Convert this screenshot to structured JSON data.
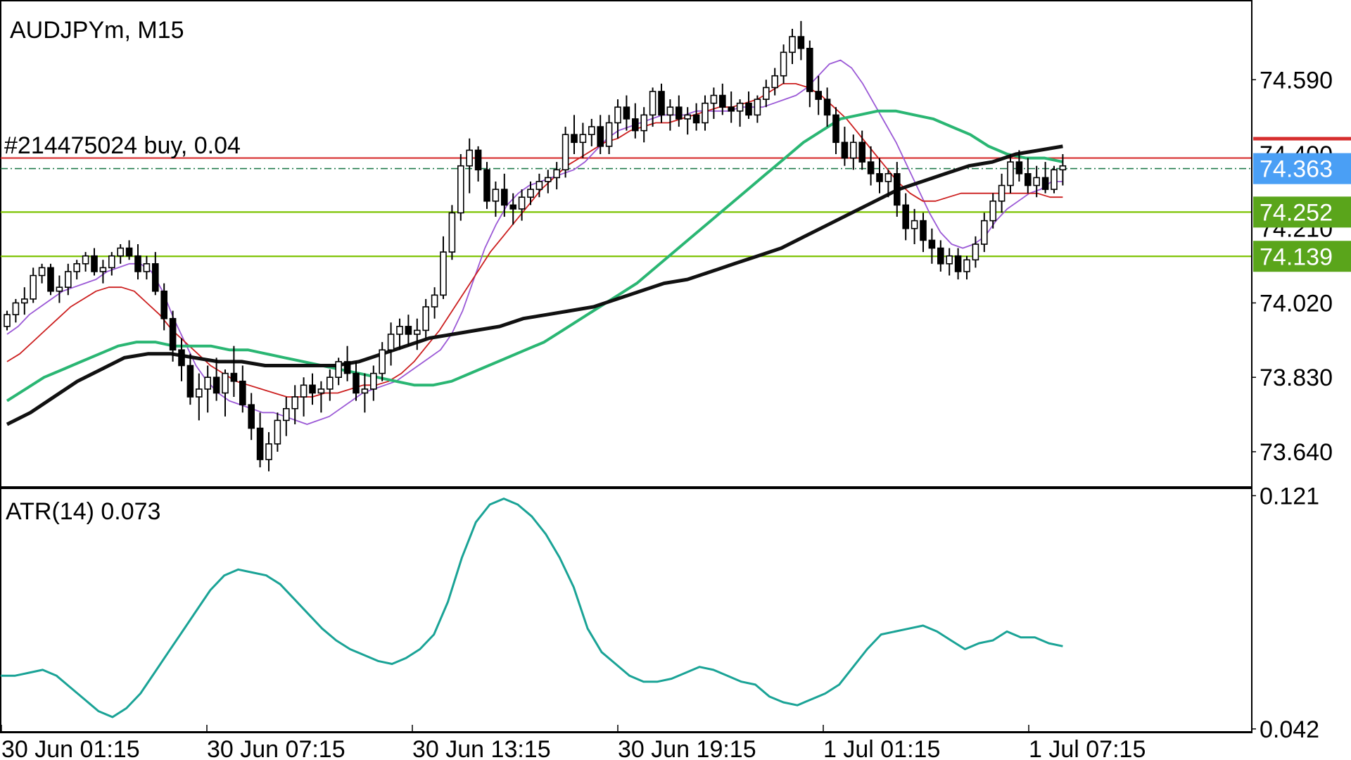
{
  "chart_data": [
    {
      "type": "candlestick",
      "title": "AUDJPYm, M15",
      "x_ticks": [
        "30 Jun 01:15",
        "30 Jun 07:15",
        "30 Jun 13:15",
        "30 Jun 19:15",
        "1 Jul 01:15",
        "1 Jul 07:15"
      ],
      "y_ticks": [
        "74.590",
        "74.020",
        "73.830",
        "73.640"
      ],
      "y_range": [
        73.55,
        74.79
      ],
      "grid": false,
      "series_mode": "candles with moving-average overlays",
      "ohlc": [
        [
          73.96,
          74.0,
          73.95,
          73.99
        ],
        [
          73.99,
          74.03,
          73.97,
          74.02
        ],
        [
          74.02,
          74.06,
          73.99,
          74.03
        ],
        [
          74.03,
          74.11,
          74.02,
          74.09
        ],
        [
          74.09,
          74.12,
          74.07,
          74.11
        ],
        [
          74.11,
          74.12,
          74.04,
          74.05
        ],
        [
          74.05,
          74.09,
          74.02,
          74.06
        ],
        [
          74.06,
          74.12,
          74.04,
          74.1
        ],
        [
          74.1,
          74.13,
          74.08,
          74.12
        ],
        [
          74.12,
          74.15,
          74.1,
          74.14
        ],
        [
          74.14,
          74.16,
          74.09,
          74.1
        ],
        [
          74.1,
          74.13,
          74.07,
          74.11
        ],
        [
          74.11,
          74.15,
          74.09,
          74.14
        ],
        [
          74.14,
          74.17,
          74.12,
          74.16
        ],
        [
          74.16,
          74.18,
          74.13,
          74.14
        ],
        [
          74.14,
          74.17,
          74.08,
          74.1
        ],
        [
          74.1,
          74.14,
          74.08,
          74.12
        ],
        [
          74.12,
          74.15,
          74.04,
          74.05
        ],
        [
          74.05,
          74.07,
          73.95,
          73.98
        ],
        [
          73.98,
          74.0,
          73.87,
          73.9
        ],
        [
          73.9,
          73.93,
          73.82,
          73.86
        ],
        [
          73.86,
          73.89,
          73.76,
          73.78
        ],
        [
          73.78,
          73.84,
          73.72,
          73.8
        ],
        [
          73.8,
          73.86,
          73.74,
          73.83
        ],
        [
          73.83,
          73.88,
          73.77,
          73.79
        ],
        [
          73.79,
          73.85,
          73.73,
          73.84
        ],
        [
          73.84,
          73.91,
          73.78,
          73.82
        ],
        [
          73.82,
          73.86,
          73.74,
          73.76
        ],
        [
          73.76,
          73.79,
          73.67,
          73.7
        ],
        [
          73.7,
          73.74,
          73.6,
          73.62
        ],
        [
          73.62,
          73.69,
          73.59,
          73.66
        ],
        [
          73.66,
          73.74,
          73.64,
          73.72
        ],
        [
          73.72,
          73.78,
          73.68,
          73.75
        ],
        [
          73.75,
          73.81,
          73.71,
          73.78
        ],
        [
          73.78,
          73.83,
          73.73,
          73.81
        ],
        [
          73.81,
          73.84,
          73.76,
          73.79
        ],
        [
          73.79,
          73.82,
          73.74,
          73.8
        ],
        [
          73.8,
          73.85,
          73.77,
          73.83
        ],
        [
          73.83,
          73.88,
          73.81,
          73.87
        ],
        [
          73.87,
          73.91,
          73.82,
          73.84
        ],
        [
          73.84,
          73.87,
          73.77,
          73.79
        ],
        [
          73.79,
          73.84,
          73.74,
          73.8
        ],
        [
          73.8,
          73.86,
          73.77,
          73.84
        ],
        [
          73.84,
          73.92,
          73.82,
          73.9
        ],
        [
          73.9,
          73.97,
          73.86,
          73.94
        ],
        [
          73.94,
          73.98,
          73.9,
          73.96
        ],
        [
          73.96,
          73.99,
          73.91,
          73.94
        ],
        [
          73.94,
          73.98,
          73.9,
          73.95
        ],
        [
          73.95,
          74.03,
          73.93,
          74.01
        ],
        [
          74.01,
          74.06,
          73.98,
          74.04
        ],
        [
          74.04,
          74.19,
          74.03,
          74.15
        ],
        [
          74.15,
          74.27,
          74.13,
          74.25
        ],
        [
          74.25,
          74.4,
          74.23,
          74.37
        ],
        [
          74.37,
          74.44,
          74.3,
          74.41
        ],
        [
          74.41,
          74.42,
          74.33,
          74.36
        ],
        [
          74.36,
          74.38,
          74.26,
          74.28
        ],
        [
          74.28,
          74.33,
          74.24,
          74.31
        ],
        [
          74.31,
          74.35,
          74.24,
          74.27
        ],
        [
          74.27,
          74.3,
          74.22,
          74.26
        ],
        [
          74.26,
          74.31,
          74.23,
          74.29
        ],
        [
          74.29,
          74.33,
          74.27,
          74.31
        ],
        [
          74.31,
          74.35,
          74.29,
          74.33
        ],
        [
          74.33,
          74.36,
          74.3,
          74.34
        ],
        [
          74.34,
          74.38,
          74.31,
          74.36
        ],
        [
          74.36,
          74.47,
          74.34,
          74.45
        ],
        [
          74.45,
          74.5,
          74.4,
          74.43
        ],
        [
          74.43,
          74.48,
          74.39,
          74.45
        ],
        [
          74.45,
          74.49,
          74.42,
          74.47
        ],
        [
          74.47,
          74.5,
          74.4,
          74.42
        ],
        [
          74.42,
          74.5,
          74.4,
          74.48
        ],
        [
          74.48,
          74.54,
          74.44,
          74.52
        ],
        [
          74.52,
          74.55,
          74.46,
          74.49
        ],
        [
          74.49,
          74.53,
          74.44,
          74.46
        ],
        [
          74.46,
          74.52,
          74.43,
          74.5
        ],
        [
          74.5,
          74.57,
          74.47,
          74.56
        ],
        [
          74.56,
          74.58,
          74.48,
          74.5
        ],
        [
          74.5,
          74.54,
          74.46,
          74.52
        ],
        [
          74.52,
          74.55,
          74.47,
          74.49
        ],
        [
          74.49,
          74.52,
          74.45,
          74.5
        ],
        [
          74.5,
          74.53,
          74.46,
          74.48
        ],
        [
          74.48,
          74.55,
          74.46,
          74.53
        ],
        [
          74.53,
          74.57,
          74.49,
          74.55
        ],
        [
          74.55,
          74.58,
          74.5,
          74.52
        ],
        [
          74.52,
          74.56,
          74.48,
          74.51
        ],
        [
          74.51,
          74.54,
          74.47,
          74.53
        ],
        [
          74.53,
          74.56,
          74.49,
          74.5
        ],
        [
          74.5,
          74.55,
          74.48,
          74.54
        ],
        [
          74.54,
          74.59,
          74.52,
          74.57
        ],
        [
          74.57,
          74.62,
          74.55,
          74.6
        ],
        [
          74.6,
          74.68,
          74.58,
          74.66
        ],
        [
          74.66,
          74.72,
          74.63,
          74.7
        ],
        [
          74.7,
          74.74,
          74.64,
          74.67
        ],
        [
          74.67,
          74.69,
          74.52,
          74.56
        ],
        [
          74.56,
          74.6,
          74.5,
          74.54
        ],
        [
          74.54,
          74.57,
          74.47,
          74.5
        ],
        [
          74.5,
          74.52,
          74.4,
          74.43
        ],
        [
          74.43,
          74.47,
          74.37,
          74.39
        ],
        [
          74.39,
          74.45,
          74.36,
          74.43
        ],
        [
          74.43,
          74.46,
          74.36,
          74.38
        ],
        [
          74.38,
          74.42,
          74.32,
          74.35
        ],
        [
          74.35,
          74.39,
          74.3,
          74.33
        ],
        [
          74.33,
          74.36,
          74.29,
          74.35
        ],
        [
          74.35,
          74.38,
          74.24,
          74.27
        ],
        [
          74.27,
          74.3,
          74.18,
          74.21
        ],
        [
          74.21,
          74.26,
          74.17,
          74.23
        ],
        [
          74.23,
          74.25,
          74.15,
          74.18
        ],
        [
          74.18,
          74.21,
          74.12,
          74.16
        ],
        [
          74.16,
          74.18,
          74.1,
          74.12
        ],
        [
          74.12,
          74.16,
          74.09,
          74.14
        ],
        [
          74.14,
          74.16,
          74.08,
          74.1
        ],
        [
          74.1,
          74.14,
          74.08,
          74.13
        ],
        [
          74.13,
          74.19,
          74.11,
          74.17
        ],
        [
          74.17,
          74.25,
          74.15,
          74.23
        ],
        [
          74.23,
          74.3,
          74.21,
          74.28
        ],
        [
          74.28,
          74.35,
          74.25,
          74.32
        ],
        [
          74.32,
          74.4,
          74.3,
          74.38
        ],
        [
          74.38,
          74.41,
          74.33,
          74.35
        ],
        [
          74.35,
          74.39,
          74.3,
          74.32
        ],
        [
          74.32,
          74.37,
          74.29,
          74.34
        ],
        [
          74.34,
          74.38,
          74.3,
          74.31
        ],
        [
          74.31,
          74.37,
          74.3,
          74.36
        ],
        [
          74.36,
          74.4,
          74.32,
          74.37
        ]
      ],
      "overlays": [
        {
          "color": "#9b59d6",
          "values": [
            73.94,
            73.96,
            73.99,
            74.01,
            74.03,
            74.05,
            74.06,
            74.07,
            74.08,
            74.1,
            74.11,
            74.12,
            74.12,
            74.1,
            74.05,
            73.98,
            73.92,
            73.86,
            73.82,
            73.79,
            73.77,
            73.76,
            73.75,
            73.74,
            73.74,
            73.73,
            73.72,
            73.71,
            73.72,
            73.73,
            73.75,
            73.77,
            73.79,
            73.8,
            73.81,
            73.82,
            73.84,
            73.86,
            73.88,
            73.9,
            73.94,
            74.0,
            74.08,
            74.16,
            74.22,
            74.27,
            74.3,
            74.32,
            74.33,
            74.34,
            74.35,
            74.36,
            74.38,
            74.41,
            74.44,
            74.46,
            74.47,
            74.48,
            74.49,
            74.5,
            74.5,
            74.5,
            74.51,
            74.51,
            74.51,
            74.51,
            74.52,
            74.52,
            74.52,
            74.53,
            74.54,
            74.55,
            74.57,
            74.6,
            74.63,
            74.64,
            74.62,
            74.58,
            74.53,
            74.48,
            74.43,
            74.37,
            74.31,
            74.25,
            74.2,
            74.17,
            74.16,
            74.17,
            74.19,
            74.23,
            74.26,
            74.28,
            74.3,
            74.31,
            74.33,
            74.33
          ]
        },
        {
          "color": "#cc1f1f",
          "values": [
            73.87,
            73.89,
            73.92,
            73.95,
            73.98,
            74.01,
            74.03,
            74.05,
            74.06,
            74.06,
            74.05,
            74.02,
            73.99,
            73.95,
            73.92,
            73.89,
            73.86,
            73.84,
            73.82,
            73.81,
            73.8,
            73.79,
            73.78,
            73.78,
            73.78,
            73.79,
            73.79,
            73.8,
            73.81,
            73.81,
            73.82,
            73.84,
            73.87,
            73.91,
            73.95,
            74.0,
            74.05,
            74.1,
            74.15,
            74.19,
            74.23,
            74.27,
            74.31,
            74.34,
            74.37,
            74.39,
            74.41,
            74.43,
            74.44,
            74.46,
            74.47,
            74.48,
            74.48,
            74.49,
            74.5,
            74.51,
            74.52,
            74.52,
            74.53,
            74.54,
            74.56,
            74.58,
            74.58,
            74.57,
            74.55,
            74.52,
            74.49,
            74.45,
            74.41,
            74.37,
            74.33,
            74.3,
            74.28,
            74.28,
            74.29,
            74.3,
            74.3,
            74.3,
            74.3,
            74.3,
            74.3,
            74.3,
            74.29,
            74.29
          ]
        },
        {
          "color": "#2ab673",
          "values": [
            73.77,
            73.8,
            73.83,
            73.85,
            73.87,
            73.89,
            73.91,
            73.92,
            73.92,
            73.91,
            73.91,
            73.91,
            73.9,
            73.9,
            73.89,
            73.88,
            73.87,
            73.86,
            73.85,
            73.84,
            73.83,
            73.82,
            73.81,
            73.81,
            73.82,
            73.84,
            73.86,
            73.88,
            73.9,
            73.92,
            73.95,
            73.98,
            74.01,
            74.04,
            74.07,
            74.11,
            74.15,
            74.19,
            74.23,
            74.27,
            74.31,
            74.35,
            74.39,
            74.43,
            74.46,
            74.49,
            74.5,
            74.51,
            74.51,
            74.5,
            74.49,
            74.47,
            74.45,
            74.42,
            74.4,
            74.39,
            74.39,
            74.38
          ]
        },
        {
          "color": "#111111",
          "values": [
            73.71,
            73.74,
            73.78,
            73.82,
            73.85,
            73.88,
            73.89,
            73.89,
            73.88,
            73.87,
            73.87,
            73.86,
            73.86,
            73.86,
            73.86,
            73.87,
            73.89,
            73.91,
            73.93,
            73.94,
            73.95,
            73.96,
            73.98,
            73.99,
            74.0,
            74.01,
            74.03,
            74.05,
            74.07,
            74.08,
            74.1,
            74.12,
            74.14,
            74.16,
            74.19,
            74.22,
            74.25,
            74.28,
            74.31,
            74.33,
            74.35,
            74.37,
            74.38,
            74.4,
            74.41,
            74.42
          ]
        }
      ],
      "horizontal_lines": [
        {
          "label": "#214475024 buy, 0.04",
          "value": 74.39,
          "color": "#d62d2d"
        },
        {
          "label": "",
          "value": 74.363,
          "color": "#1f7a4a",
          "style": "dash-dot"
        },
        {
          "label": "",
          "value": 74.252,
          "color": "#7cc300"
        },
        {
          "label": "",
          "value": 74.139,
          "color": "#7cc300"
        }
      ],
      "price_badges": [
        {
          "text": "74.363",
          "color": "#4a9ff5"
        },
        {
          "text": "74.252",
          "color": "#5aa51b"
        },
        {
          "text": "74.139",
          "color": "#5aa51b"
        }
      ],
      "partially_hidden_labels": [
        "74.400",
        "74.210"
      ]
    },
    {
      "type": "line",
      "title": "ATR(14) 0.073",
      "y_ticks": [
        "0.121",
        "0.042"
      ],
      "y_range": [
        0.041,
        0.123
      ],
      "grid": false,
      "series": [
        {
          "color": "#1aa396",
          "values": [
            0.06,
            0.06,
            0.061,
            0.062,
            0.06,
            0.056,
            0.052,
            0.048,
            0.046,
            0.049,
            0.054,
            0.061,
            0.068,
            0.075,
            0.082,
            0.089,
            0.094,
            0.096,
            0.095,
            0.094,
            0.091,
            0.086,
            0.081,
            0.076,
            0.072,
            0.069,
            0.067,
            0.065,
            0.064,
            0.066,
            0.069,
            0.074,
            0.085,
            0.1,
            0.112,
            0.118,
            0.12,
            0.118,
            0.114,
            0.108,
            0.1,
            0.09,
            0.076,
            0.068,
            0.064,
            0.06,
            0.058,
            0.058,
            0.059,
            0.061,
            0.063,
            0.062,
            0.06,
            0.058,
            0.057,
            0.053,
            0.051,
            0.05,
            0.052,
            0.054,
            0.057,
            0.063,
            0.069,
            0.074,
            0.075,
            0.076,
            0.077,
            0.075,
            0.072,
            0.069,
            0.071,
            0.072,
            0.075,
            0.073,
            0.073,
            0.071,
            0.07
          ]
        }
      ]
    }
  ]
}
